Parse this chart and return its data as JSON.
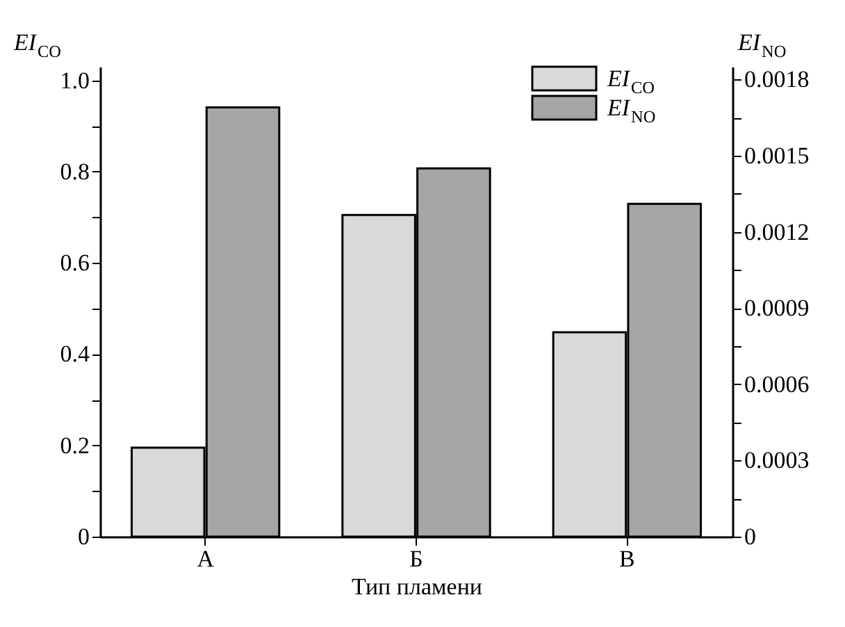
{
  "chart_data": {
    "type": "bar",
    "categories": [
      "А",
      "Б",
      "В"
    ],
    "xlabel": "Тип пламени",
    "ylabel": "EI$_{CO}$",
    "y2label": "EI$_{NO}$",
    "series": [
      {
        "name": "EI$_{CO}$",
        "color": "#d9d9d9",
        "values": [
          0.195,
          0.705,
          0.448
        ]
      },
      {
        "name": "EI$_{NO}$",
        "color": "#a6a6a6",
        "values": [
          0.00169,
          0.00145,
          0.00131
        ],
        "axis": "y2"
      }
    ],
    "ylim": [
      0,
      1.03
    ],
    "yticks": [
      0,
      {
        "value": 0.1,
        "label": null
      },
      0.2,
      {
        "value": 0.3,
        "label": null
      },
      0.4,
      {
        "value": 0.5,
        "label": null
      },
      0.6,
      {
        "value": 0.7,
        "label": null
      },
      0.8,
      {
        "value": 0.9,
        "label": null
      },
      {
        "value": 1,
        "label": "1.0"
      }
    ],
    "y2lim": [
      0,
      0.00185
    ],
    "y2ticks": [
      0,
      {
        "value": 0.00015,
        "label": null
      },
      0.0003,
      {
        "value": 0.00045,
        "label": null
      },
      0.0006,
      {
        "value": 0.00075,
        "label": null
      },
      0.0009,
      {
        "value": 0.00105,
        "label": null
      },
      0.0012,
      {
        "value": 0.00135,
        "label": null
      },
      0.0015,
      {
        "value": 0.00165,
        "label": null
      },
      0.0018
    ],
    "grid": false,
    "legend": "top right"
  }
}
